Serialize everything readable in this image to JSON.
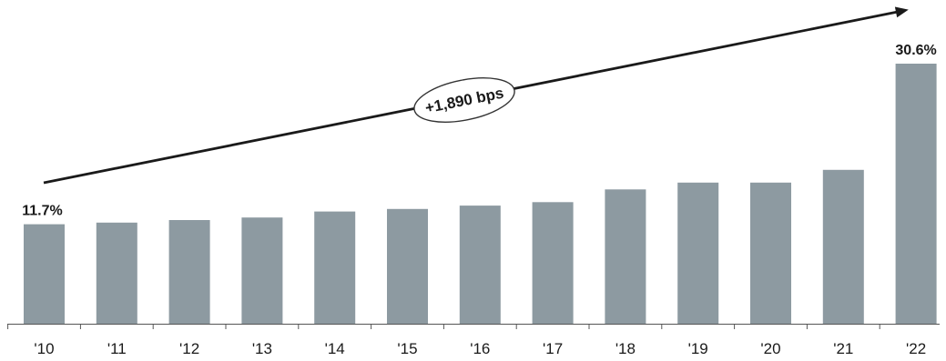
{
  "chart_data": {
    "type": "bar",
    "categories": [
      "'10",
      "'11",
      "'12",
      "'13",
      "'14",
      "'15",
      "'16",
      "'17",
      "'18",
      "'19",
      "'20",
      "'21",
      "'22"
    ],
    "values": [
      11.7,
      11.9,
      12.2,
      12.5,
      13.2,
      13.5,
      13.9,
      14.3,
      15.8,
      16.6,
      16.6,
      18.1,
      30.6
    ],
    "data_labels": [
      {
        "index": 0,
        "text": "11.7%"
      },
      {
        "index": 12,
        "text": "30.6%"
      }
    ],
    "annotation": {
      "text": "+1,890 bps",
      "style": "trend-arrow-with-ellipse-callout"
    },
    "title": "",
    "xlabel": "",
    "ylabel": "",
    "ylim": [
      0,
      35
    ],
    "grid": false,
    "bar_color": "#8d9aa1",
    "axis_color": "#555555",
    "arrow_color": "#1a1a1a"
  }
}
